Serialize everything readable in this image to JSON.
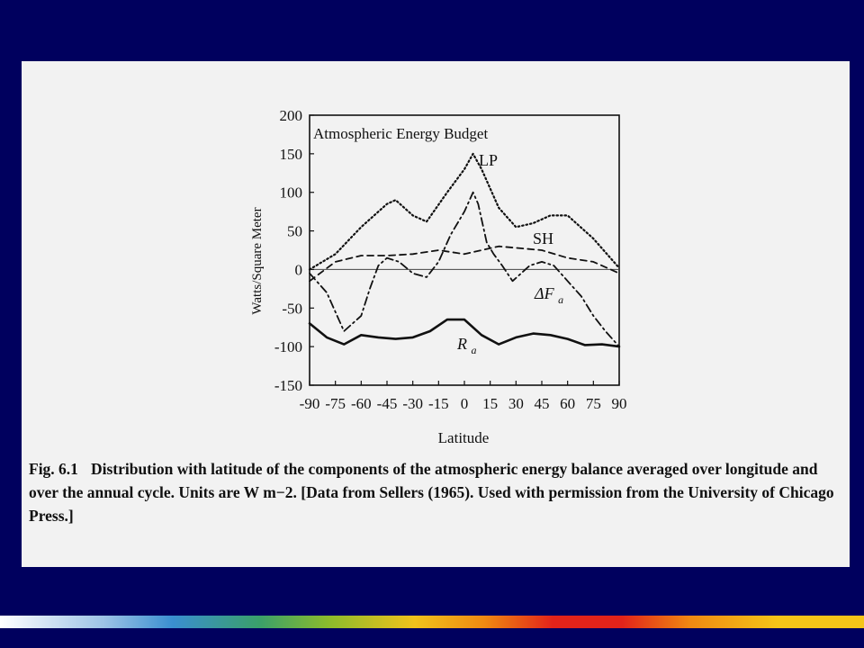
{
  "chart_data": {
    "type": "line",
    "title": "Atmospheric Energy Budget",
    "xlabel": "Latitude",
    "ylabel": "Watts/Square Meter",
    "xlim": [
      -90,
      90
    ],
    "ylim": [
      -150,
      200
    ],
    "xticks": [
      "-90",
      "-75",
      "-60",
      "-45",
      "-30",
      "-15",
      "0",
      "15",
      "30",
      "45",
      "60",
      "75",
      "90"
    ],
    "yticks": [
      "200",
      "150",
      "100",
      "50",
      "0",
      "-50",
      "-100",
      "-150"
    ],
    "grid": false,
    "zero_line": true,
    "series": [
      {
        "name": "LP",
        "style": "dotted",
        "x": [
          -90,
          -75,
          -60,
          -45,
          -40,
          -30,
          -22,
          -10,
          0,
          5,
          10,
          20,
          30,
          40,
          50,
          60,
          75,
          90
        ],
        "y": [
          0,
          20,
          55,
          85,
          90,
          70,
          62,
          100,
          130,
          150,
          130,
          80,
          55,
          60,
          70,
          70,
          40,
          2
        ]
      },
      {
        "name": "SH",
        "style": "dashed",
        "x": [
          -90,
          -75,
          -60,
          -45,
          -30,
          -15,
          0,
          10,
          20,
          30,
          45,
          60,
          75,
          90
        ],
        "y": [
          -15,
          10,
          18,
          18,
          20,
          25,
          20,
          25,
          30,
          28,
          25,
          15,
          10,
          -5
        ]
      },
      {
        "name": "ΔF_a",
        "style": "dash-dot",
        "x": [
          -90,
          -80,
          -70,
          -60,
          -55,
          -50,
          -45,
          -38,
          -30,
          -22,
          -15,
          -8,
          0,
          5,
          8,
          13,
          17,
          22,
          28,
          38,
          45,
          52,
          60,
          68,
          75,
          82,
          90
        ],
        "y": [
          -5,
          -30,
          -80,
          -60,
          -25,
          5,
          15,
          10,
          -5,
          -10,
          10,
          45,
          75,
          100,
          85,
          35,
          20,
          5,
          -15,
          5,
          10,
          5,
          -15,
          -35,
          -60,
          -80,
          -100
        ]
      },
      {
        "name": "R_a",
        "style": "solid",
        "x": [
          -90,
          -80,
          -70,
          -60,
          -50,
          -40,
          -30,
          -20,
          -10,
          0,
          10,
          20,
          30,
          40,
          50,
          60,
          70,
          80,
          90
        ],
        "y": [
          -70,
          -88,
          -97,
          -85,
          -88,
          -90,
          -88,
          -80,
          -65,
          -65,
          -85,
          -97,
          -88,
          -83,
          -85,
          -90,
          -98,
          -97,
          -100
        ]
      }
    ]
  },
  "labels": {
    "lp": "LP",
    "sh": "SH",
    "dfa_main": "ΔF",
    "dfa_sub": "a",
    "ra_main": "R",
    "ra_sub": "a"
  },
  "caption": {
    "label": "Fig. 6.1",
    "text": "Distribution with latitude of the components of the atmospheric energy balance averaged over longitude and over the annual cycle. Units are W m−2. [Data from Sellers (1965). Used with permission from the University of Chicago Press.]"
  }
}
